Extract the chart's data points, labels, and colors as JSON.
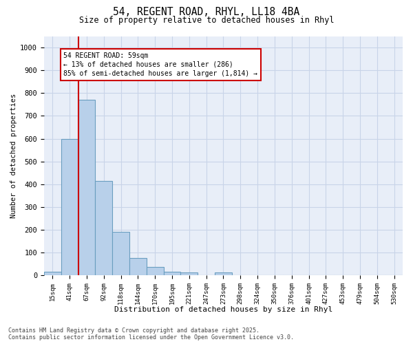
{
  "title_line1": "54, REGENT ROAD, RHYL, LL18 4BA",
  "title_line2": "Size of property relative to detached houses in Rhyl",
  "xlabel": "Distribution of detached houses by size in Rhyl",
  "ylabel": "Number of detached properties",
  "categories": [
    "15sqm",
    "41sqm",
    "67sqm",
    "92sqm",
    "118sqm",
    "144sqm",
    "170sqm",
    "195sqm",
    "221sqm",
    "247sqm",
    "273sqm",
    "298sqm",
    "324sqm",
    "350sqm",
    "376sqm",
    "401sqm",
    "427sqm",
    "453sqm",
    "479sqm",
    "504sqm",
    "530sqm"
  ],
  "values": [
    15,
    600,
    770,
    415,
    190,
    75,
    37,
    17,
    12,
    0,
    12,
    0,
    0,
    0,
    0,
    0,
    0,
    0,
    0,
    0,
    0
  ],
  "bar_color": "#b8d0ea",
  "bar_edge_color": "#6a9ec0",
  "vline_color": "#cc0000",
  "annotation_text": "54 REGENT ROAD: 59sqm\n← 13% of detached houses are smaller (286)\n85% of semi-detached houses are larger (1,814) →",
  "annotation_box_color": "#cc0000",
  "ylim": [
    0,
    1050
  ],
  "yticks": [
    0,
    100,
    200,
    300,
    400,
    500,
    600,
    700,
    800,
    900,
    1000
  ],
  "grid_color": "#c8d4e8",
  "bg_color": "#e8eef8",
  "footer_line1": "Contains HM Land Registry data © Crown copyright and database right 2025.",
  "footer_line2": "Contains public sector information licensed under the Open Government Licence v3.0."
}
